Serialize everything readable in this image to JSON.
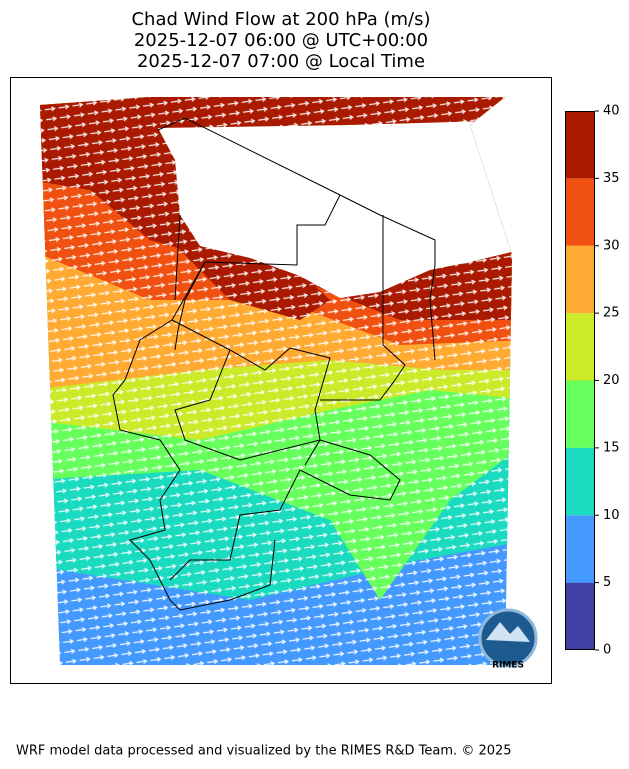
{
  "title": [
    "Chad Wind Flow at 200 hPa (m/s)",
    "2025-12-07 06:00 @ UTC+00:00",
    "2025-12-07 07:00 @ Local Time"
  ],
  "colorbar": {
    "ticks": [
      0,
      5,
      10,
      15,
      20,
      25,
      30,
      35,
      40
    ],
    "colors": [
      "#3f3fa6",
      "#4499ff",
      "#1adbbf",
      "#66ff5c",
      "#ccea2a",
      "#ffaa33",
      "#f05010",
      "#a91a00"
    ]
  },
  "logo": "RIMES",
  "footer": "WRF model data processed and visualized by the RIMES R&D Team. © 2025"
}
